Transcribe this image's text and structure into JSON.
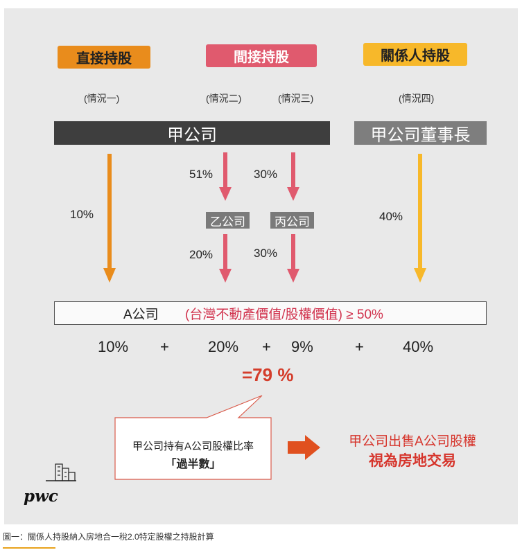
{
  "headers": {
    "direct": "直接持股",
    "indirect": "間接持股",
    "related": "關係人持股"
  },
  "cases": {
    "case1": "(情況一)",
    "case2": "(情況二)",
    "case3": "(情況三)",
    "case4": "(情況四)"
  },
  "companies": {
    "parent": "甲公司",
    "chairman": "甲公司董事長",
    "yi": "乙公司",
    "bing": "丙公司"
  },
  "percentages": {
    "direct": "10%",
    "parent_to_yi": "51%",
    "parent_to_bing": "30%",
    "yi_to_a": "20%",
    "bing_to_a": "30%",
    "chairman": "40%"
  },
  "target": {
    "name": "A公司",
    "condition": "(台灣不動產價值/股權價值) ≥ 50%"
  },
  "sum": {
    "term1": "10%",
    "plus1": "+",
    "term2": "20%",
    "plus2": "+",
    "term3": "9%",
    "plus3": "+",
    "term4": "40%",
    "total": "=79 %"
  },
  "callout": {
    "line1": "甲公司持有A公司股權比率",
    "line2": "「過半數」"
  },
  "result": {
    "line1": "甲公司出售A公司股權",
    "line2": "視為房地交易"
  },
  "logo": {
    "text": "pwc"
  },
  "caption": "圖一：關係人持股納入房地合一稅2.0特定股權之持股計算",
  "colors": {
    "direct": "#e98c1c",
    "indirect": "#e05a6e",
    "related": "#f7b82a",
    "highlight": "#d43d2b"
  }
}
